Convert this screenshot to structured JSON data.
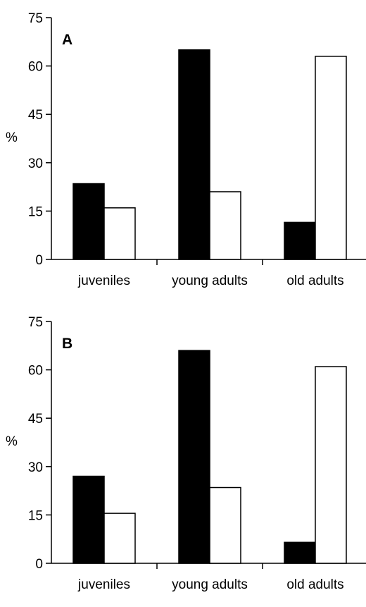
{
  "chart_data": [
    {
      "type": "bar",
      "title": "A",
      "ylabel": "%",
      "xlabel": "",
      "ylim": [
        0,
        75
      ],
      "yticks": [
        0,
        15,
        30,
        45,
        60,
        75
      ],
      "categories": [
        "juveniles",
        "young adults",
        "old adults"
      ],
      "series": [
        {
          "values": [
            23.5,
            65,
            11.5
          ],
          "color": "#000000"
        },
        {
          "values": [
            16,
            21,
            63
          ],
          "color": "#ffffff"
        }
      ],
      "grid": false,
      "legend": "none"
    },
    {
      "type": "bar",
      "title": "B",
      "ylabel": "%",
      "xlabel": "",
      "ylim": [
        0,
        75
      ],
      "yticks": [
        0,
        15,
        30,
        45,
        60,
        75
      ],
      "categories": [
        "juveniles",
        "young adults",
        "old adults"
      ],
      "series": [
        {
          "values": [
            27,
            66,
            6.5
          ],
          "color": "#000000"
        },
        {
          "values": [
            15.5,
            23.5,
            61
          ],
          "color": "#ffffff"
        }
      ],
      "grid": false,
      "legend": "none"
    }
  ]
}
